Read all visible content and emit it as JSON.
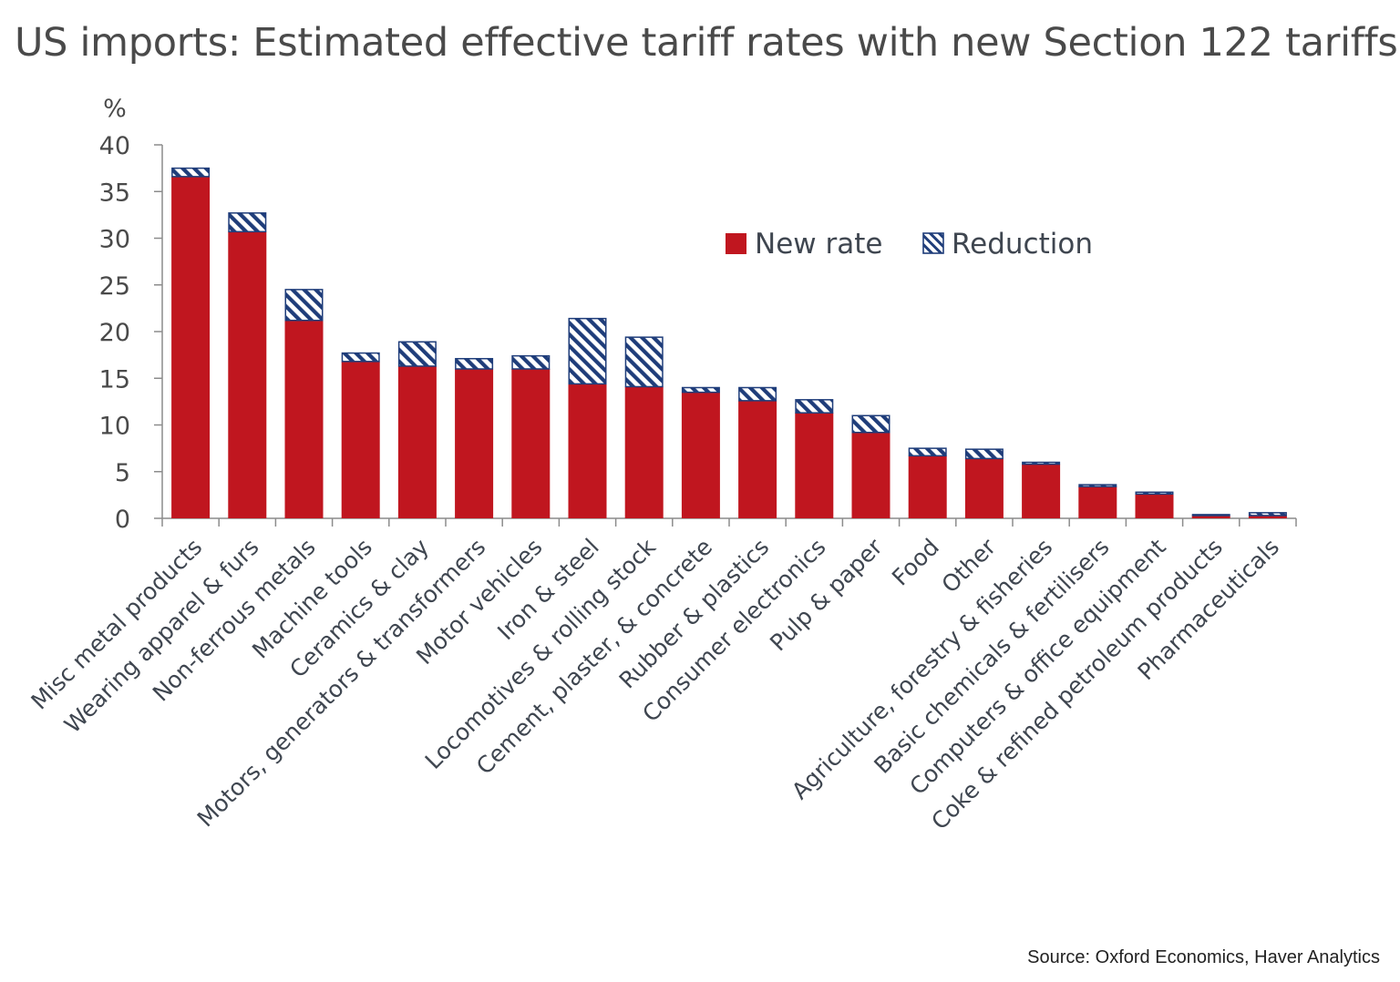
{
  "title": "US imports: Estimated effective tariff rates with new Section 122 tariffs",
  "source": "Source: Oxford Economics, Haver Analytics",
  "chart_data": {
    "type": "bar",
    "stacked": true,
    "title": "US imports: Estimated effective tariff rates with new Section 122 tariffs",
    "ylabel": "%",
    "xlabel": "",
    "ylim": [
      0,
      40
    ],
    "yticks": [
      0,
      5,
      10,
      15,
      20,
      25,
      30,
      35,
      40
    ],
    "grid": false,
    "legend_position": "top-right",
    "categories": [
      "Misc metal products",
      "Wearing apparel & furs",
      "Non-ferrous metals",
      "Machine tools",
      "Ceramics & clay",
      "Motors, generators & transformers",
      "Motor vehicles",
      "Iron & steel",
      "Locomotives & rolling stock",
      "Cement, plaster, & concrete",
      "Rubber & plastics",
      "Consumer electronics",
      "Pulp & paper",
      "Food",
      "Other",
      "Agriculture, forestry & fisheries",
      "Basic chemicals & fertilisers",
      "Computers & office equipment",
      "Coke & refined petroleum products",
      "Pharmaceuticals"
    ],
    "series": [
      {
        "name": "New rate",
        "color": "#c0161f",
        "pattern": "solid",
        "values": [
          36.6,
          30.7,
          21.2,
          16.8,
          16.3,
          16.0,
          16.0,
          14.4,
          14.1,
          13.5,
          12.6,
          11.3,
          9.2,
          6.7,
          6.4,
          5.8,
          3.4,
          2.6,
          0.3,
          0.3
        ]
      },
      {
        "name": "Reduction",
        "color": "#1f3d7a",
        "pattern": "hatched",
        "values": [
          0.9,
          2.0,
          3.3,
          0.9,
          2.6,
          1.1,
          1.4,
          7.0,
          5.3,
          0.5,
          1.4,
          1.4,
          1.8,
          0.8,
          1.0,
          0.2,
          0.2,
          0.2,
          0.1,
          0.3
        ]
      }
    ]
  }
}
